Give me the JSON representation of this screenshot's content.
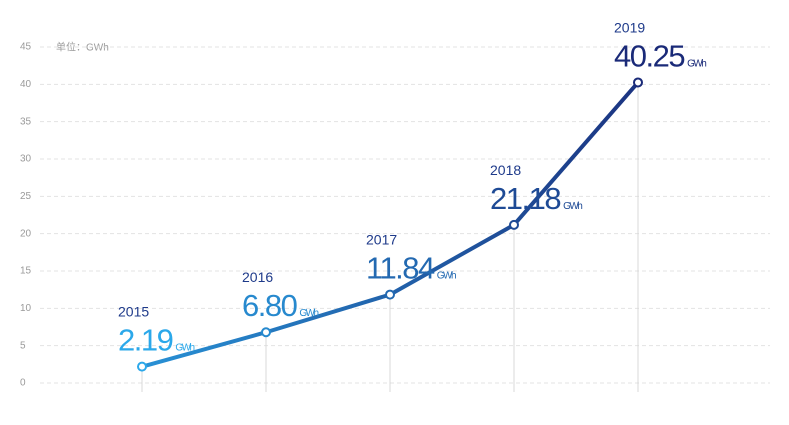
{
  "chart_data": {
    "type": "line",
    "unit_note": "单位：GWh",
    "unit": "GWh",
    "categories": [
      "2015",
      "2016",
      "2017",
      "2018",
      "2019"
    ],
    "values": [
      2.19,
      6.8,
      11.84,
      21.18,
      40.25
    ],
    "value_labels": [
      "2.19",
      "6.80",
      "11.84",
      "21.18",
      "40.25"
    ],
    "colors": [
      "#2ba8ea",
      "#1a2a78"
    ],
    "ylim": [
      0,
      45
    ],
    "yticks": [
      0,
      5,
      10,
      15,
      20,
      25,
      30,
      35,
      40,
      45
    ],
    "grid": true
  }
}
